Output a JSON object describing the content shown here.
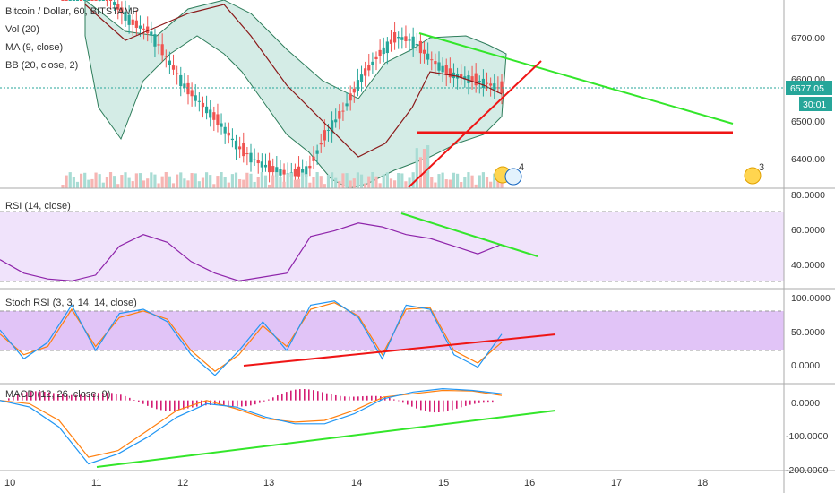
{
  "legend": {
    "symbol": "Bitcoin / Dollar, 60, BITSTAMP",
    "vol": "Vol (20)",
    "ma": "MA (9, close)",
    "bb": "BB (20, close, 2)",
    "rsi": "RSI (14, close)",
    "stoch": "Stoch RSI (3, 3, 14, 14, close)",
    "macd": "MACD (12, 26, close, 9)"
  },
  "price_badge": {
    "price": "6577.05",
    "countdown": "30:01"
  },
  "event_badges": [
    "4",
    "3"
  ],
  "colors": {
    "up": "#26a69a",
    "down": "#ef5350",
    "bb_fill": "#d4ece6",
    "bb_line": "#2e7d5b",
    "ma": "#8b1a1a",
    "rsi": "#8e24aa",
    "rsi_band": "#f0e3fb",
    "stoch_band": "#e1c4f7",
    "k": "#2196f3",
    "d": "#ff7f0e",
    "trend_green": "#33e62a",
    "trend_red": "#ef1515",
    "hist": "#d41e74",
    "badge": "#26a69a"
  },
  "chart_data": [
    {
      "type": "candlestick",
      "title": "Bitcoin / Dollar, 60, BITSTAMP",
      "x_ticks": [
        "10",
        "11",
        "12",
        "13",
        "14",
        "15",
        "16",
        "17",
        "18"
      ],
      "y_ticks": [
        "6700.00",
        "6600.00",
        "6500.00",
        "6400.00"
      ],
      "ylim": [
        6360,
        6770
      ],
      "current_price": 6577.05,
      "approx_close_series": [
        6840,
        6830,
        6810,
        6760,
        6720,
        6700,
        6640,
        6580,
        6540,
        6500,
        6450,
        6420,
        6400,
        6390,
        6400,
        6480,
        6530,
        6600,
        6650,
        6690,
        6680,
        6640,
        6610,
        6600,
        6590,
        6577
      ],
      "overlays": [
        "Vol (20)",
        "MA (9, close)",
        "BB (20, close, 2)"
      ],
      "trendlines": [
        {
          "color": "green",
          "from": [
            "14.7",
            6710
          ],
          "to": [
            "18.4",
            6480
          ]
        },
        {
          "color": "red",
          "from": [
            "14.6",
            6360
          ],
          "to": [
            "16.1",
            6640
          ]
        },
        {
          "color": "red",
          "from": [
            "14.7",
            6465
          ],
          "to": [
            "18.4",
            6465
          ]
        }
      ]
    },
    {
      "type": "line",
      "title": "RSI (14, close)",
      "y_ticks": [
        "80.0000",
        "60.0000",
        "40.0000"
      ],
      "ylim": [
        30,
        82
      ],
      "band": [
        30,
        70
      ],
      "series": [
        {
          "name": "RSI (14, close)",
          "values": [
            45,
            38,
            35,
            34,
            37,
            52,
            58,
            54,
            44,
            38,
            34,
            36,
            38,
            57,
            60,
            64,
            62,
            58,
            56,
            52,
            48,
            53
          ]
        }
      ],
      "trendlines": [
        {
          "color": "green",
          "from": [
            "14.5",
            69
          ],
          "to": [
            "16.1",
            46
          ]
        }
      ]
    },
    {
      "type": "line",
      "title": "Stoch RSI (3, 3, 14, 14, close)",
      "y_ticks": [
        "100.0000",
        "50.0000",
        "0.0000"
      ],
      "ylim": [
        -10,
        105
      ],
      "band": [
        20,
        80
      ],
      "series": [
        {
          "name": "K",
          "values": [
            55,
            20,
            40,
            85,
            30,
            75,
            80,
            65,
            25,
            0,
            30,
            65,
            30,
            85,
            90,
            70,
            20,
            85,
            80,
            25,
            10,
            50
          ]
        },
        {
          "name": "D",
          "values": [
            50,
            25,
            35,
            80,
            35,
            70,
            78,
            68,
            30,
            5,
            25,
            60,
            35,
            80,
            88,
            72,
            25,
            80,
            82,
            30,
            15,
            40
          ]
        }
      ],
      "trendlines": [
        {
          "color": "red",
          "from": [
            "12.7",
            3
          ],
          "to": [
            "16.3",
            45
          ]
        }
      ]
    },
    {
      "type": "line",
      "title": "MACD (12, 26, close, 9)",
      "y_ticks": [
        "0.0000",
        "-100.0000",
        "-200.0000"
      ],
      "ylim": [
        -210,
        50
      ],
      "series": [
        {
          "name": "MACD",
          "values": [
            0,
            -20,
            -80,
            -190,
            -160,
            -110,
            -50,
            -10,
            -20,
            -50,
            -70,
            -70,
            -40,
            5,
            25,
            35,
            30,
            20
          ]
        },
        {
          "name": "Signal",
          "values": [
            0,
            -10,
            -60,
            -170,
            -150,
            -90,
            -30,
            0,
            -25,
            -55,
            -65,
            -60,
            -30,
            10,
            20,
            30,
            28,
            15
          ]
        }
      ],
      "trendlines": [
        {
          "color": "green",
          "from": [
            "11.0",
            -195
          ],
          "to": [
            "16.3",
            -20
          ]
        }
      ]
    }
  ]
}
